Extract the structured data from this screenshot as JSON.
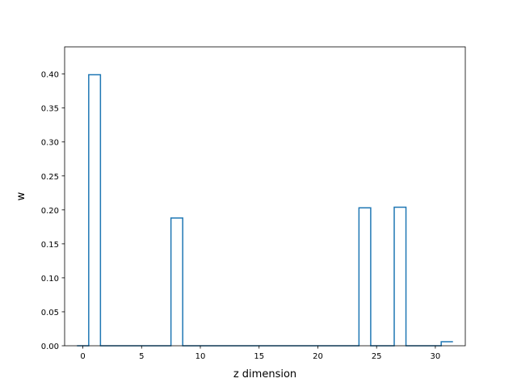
{
  "chart_data": {
    "type": "line",
    "style": "step",
    "title": "",
    "xlabel": "z dimension",
    "ylabel": "w",
    "xlim": [
      -1.55,
      32.55
    ],
    "ylim": [
      0.0,
      0.44
    ],
    "xticks": [
      0,
      5,
      10,
      15,
      20,
      25,
      30
    ],
    "yticks": [
      0.0,
      0.05,
      0.1,
      0.15,
      0.2,
      0.25,
      0.3,
      0.35,
      0.4
    ],
    "grid": false,
    "legend": "none",
    "series": [
      {
        "color": "#1f77b4",
        "x": [
          0,
          1,
          2,
          3,
          4,
          5,
          6,
          7,
          8,
          9,
          10,
          11,
          12,
          13,
          14,
          15,
          16,
          17,
          18,
          19,
          20,
          21,
          22,
          23,
          24,
          25,
          26,
          27,
          28,
          29,
          30,
          31
        ],
        "values": [
          0,
          0.399,
          0,
          0,
          0,
          0,
          0,
          0,
          0.188,
          0,
          0,
          0,
          0,
          0,
          0,
          0,
          0,
          0,
          0,
          0,
          0,
          0,
          0,
          0,
          0.203,
          0,
          0,
          0.204,
          0,
          0,
          0,
          0.006
        ]
      }
    ]
  }
}
